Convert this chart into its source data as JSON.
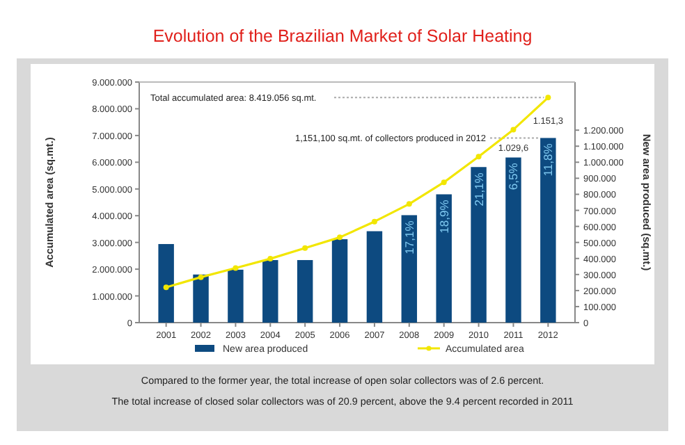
{
  "chart_data": {
    "type": "bar",
    "title": "Evolution of the Brazilian Market of Solar Heating",
    "ylabel": "Accumulated area (sq.mt.)",
    "y2label": "New area produced (sq.mt.)",
    "categories": [
      "2001",
      "2002",
      "2003",
      "2004",
      "2005",
      "2006",
      "2007",
      "2008",
      "2009",
      "2010",
      "2011",
      "2012"
    ],
    "series": [
      {
        "name": "New area produced",
        "axis": "y2",
        "color": "#0d4a80",
        "values": [
          490000,
          300000,
          330000,
          390000,
          390000,
          520000,
          570000,
          670000,
          800000,
          970000,
          1029600,
          1151300
        ]
      },
      {
        "name": "Accumulated area",
        "type": "line",
        "color": "#f2e600",
        "marker": "circle",
        "values": [
          1320000,
          1700000,
          2040000,
          2390000,
          2790000,
          3190000,
          3780000,
          4440000,
          5250000,
          6210000,
          7220000,
          8419056
        ]
      }
    ],
    "ylim": [
      0,
      9000000
    ],
    "yticks": [
      {
        "value": 0,
        "label": "0"
      },
      {
        "value": 1000000,
        "label": "1.000.000"
      },
      {
        "value": 2000000,
        "label": "2.000.000"
      },
      {
        "value": 3000000,
        "label": "3.000.000"
      },
      {
        "value": 4000000,
        "label": "4.000.000"
      },
      {
        "value": 5000000,
        "label": "5.000.000"
      },
      {
        "value": 6000000,
        "label": "6.000.000"
      },
      {
        "value": 7000000,
        "label": "7.000.000"
      },
      {
        "value": 8000000,
        "label": "8.000.000"
      },
      {
        "value": 9000000,
        "label": "9.000.000"
      }
    ],
    "y2lim": [
      0,
      1500000
    ],
    "y2ticks": [
      {
        "value": 0,
        "label": "0"
      },
      {
        "value": 100000,
        "label": "100.000"
      },
      {
        "value": 200000,
        "label": "200.000"
      },
      {
        "value": 300000,
        "label": "300.000"
      },
      {
        "value": 400000,
        "label": "400.000"
      },
      {
        "value": 500000,
        "label": "500.000"
      },
      {
        "value": 600000,
        "label": "600.000"
      },
      {
        "value": 700000,
        "label": "700.000"
      },
      {
        "value": 800000,
        "label": "800.000"
      },
      {
        "value": 900000,
        "label": "900.000"
      },
      {
        "value": 1000000,
        "label": "1.000.000"
      },
      {
        "value": 1100000,
        "label": "1.100.000"
      },
      {
        "value": 1200000,
        "label": "1.200.000"
      }
    ],
    "ref_lines": [
      {
        "axis": "y",
        "value": 8419056,
        "label": "Total accumulated area: 8.419.056 sq.mt.",
        "color": "#aaaaaa",
        "line_style": "dotted"
      },
      {
        "axis": "y2",
        "value": 1151100,
        "label": "1,151,100 sq.mt. of collectors produced in 2012",
        "color": "#aaaaaa",
        "line_style": "dotted"
      }
    ],
    "annotations": [
      "17,1%",
      "18,9%",
      "21,1%",
      "6,5%",
      "11,8%",
      "1.029,6",
      "1.151,3",
      "Compared to the former year, the total increase of open solar collectors was of 2.6 percent.",
      "The total increase of closed solar collectors was of 20.9 percent, above the 9.4 percent recorded in 2011"
    ],
    "legend": "bottom",
    "grid": false
  }
}
